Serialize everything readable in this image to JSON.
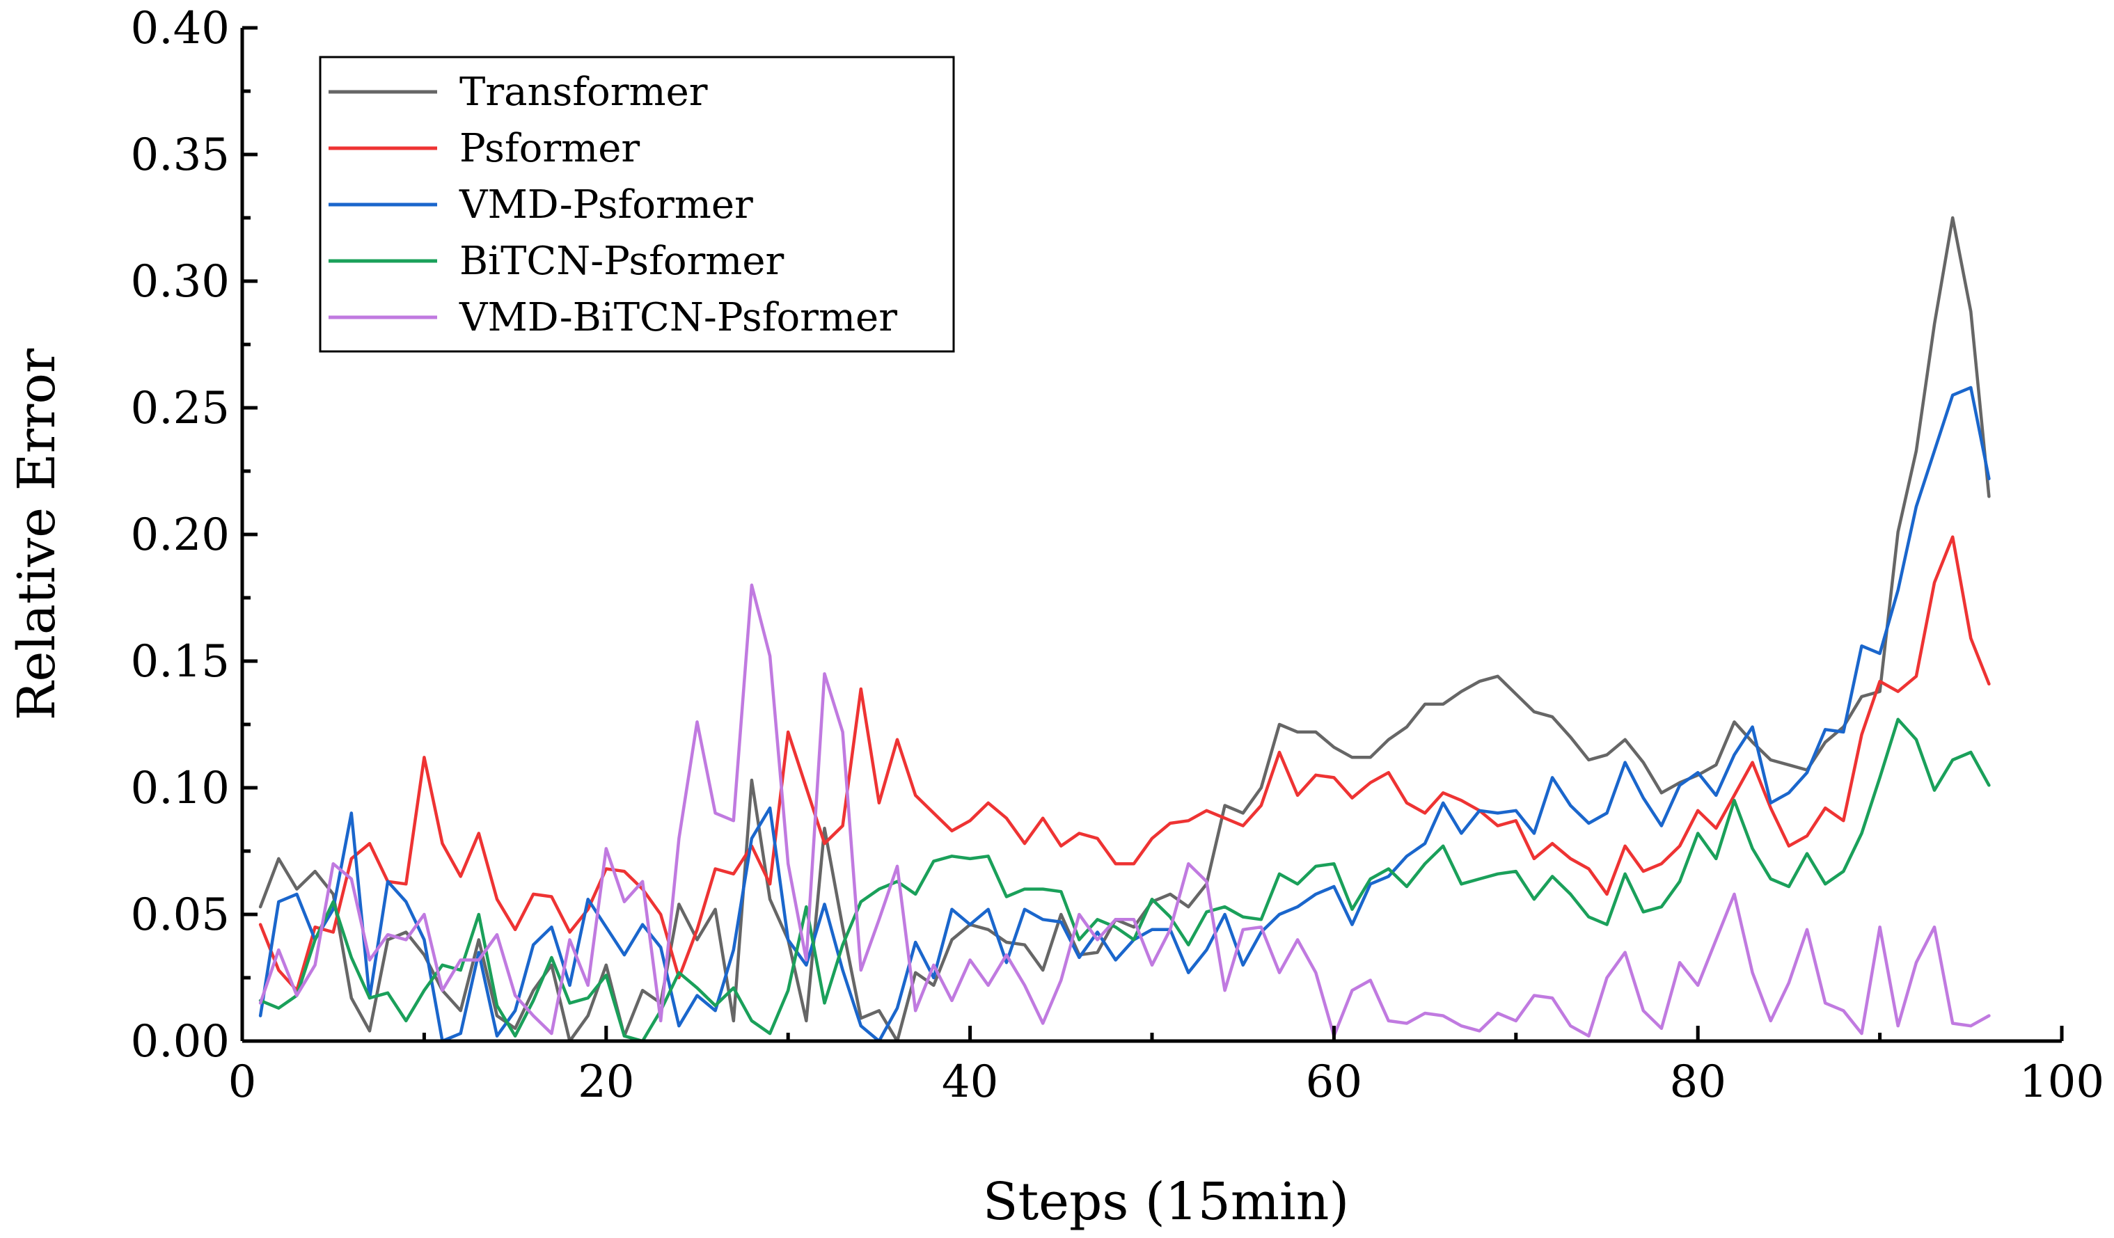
{
  "chart_data": {
    "type": "line",
    "xlabel": "Steps (15min)",
    "ylabel": "Relative Error",
    "xlim": [
      0,
      100
    ],
    "ylim": [
      0,
      0.4
    ],
    "x_ticks": [
      0,
      20,
      40,
      60,
      80,
      100
    ],
    "x_tick_labels": [
      "0",
      "20",
      "40",
      "60",
      "80",
      "100"
    ],
    "y_ticks": [
      0,
      0.05,
      0.1,
      0.15,
      0.2,
      0.25,
      0.3,
      0.35,
      0.4
    ],
    "y_tick_labels": [
      "0.00",
      "0.05",
      "0.10",
      "0.15",
      "0.20",
      "0.25",
      "0.30",
      "0.35",
      "0.40"
    ],
    "grid": false,
    "legend_position": "top-left",
    "x": [
      1,
      2,
      3,
      4,
      5,
      6,
      7,
      8,
      9,
      10,
      11,
      12,
      13,
      14,
      15,
      16,
      17,
      18,
      19,
      20,
      21,
      22,
      23,
      24,
      25,
      26,
      27,
      28,
      29,
      30,
      31,
      32,
      33,
      34,
      35,
      36,
      37,
      38,
      39,
      40,
      41,
      42,
      43,
      44,
      45,
      46,
      47,
      48,
      49,
      50,
      51,
      52,
      53,
      54,
      55,
      56,
      57,
      58,
      59,
      60,
      61,
      62,
      63,
      64,
      65,
      66,
      67,
      68,
      69,
      70,
      71,
      72,
      73,
      74,
      75,
      76,
      77,
      78,
      79,
      80,
      81,
      82,
      83,
      84,
      85,
      86,
      87,
      88,
      89,
      90,
      91,
      92,
      93,
      94,
      95,
      96
    ],
    "series": [
      {
        "name": "Transformer",
        "color": "#666666",
        "values": [
          0.053,
          0.072,
          0.06,
          0.067,
          0.058,
          0.017,
          0.004,
          0.04,
          0.043,
          0.034,
          0.02,
          0.012,
          0.04,
          0.01,
          0.005,
          0.02,
          0.03,
          0.0,
          0.01,
          0.03,
          0.002,
          0.02,
          0.015,
          0.054,
          0.04,
          0.052,
          0.008,
          0.103,
          0.056,
          0.04,
          0.008,
          0.084,
          0.045,
          0.009,
          0.012,
          0.0,
          0.027,
          0.022,
          0.04,
          0.046,
          0.044,
          0.039,
          0.038,
          0.028,
          0.05,
          0.034,
          0.035,
          0.048,
          0.045,
          0.055,
          0.058,
          0.053,
          0.062,
          0.093,
          0.09,
          0.1,
          0.125,
          0.122,
          0.122,
          0.116,
          0.112,
          0.112,
          0.119,
          0.124,
          0.133,
          0.133,
          0.138,
          0.142,
          0.144,
          0.137,
          0.13,
          0.128,
          0.12,
          0.111,
          0.113,
          0.119,
          0.11,
          0.098,
          0.102,
          0.105,
          0.109,
          0.126,
          0.118,
          0.111,
          0.109,
          0.107,
          0.118,
          0.124,
          0.136,
          0.138,
          0.201,
          0.233,
          0.283,
          0.325,
          0.288,
          0.215
        ]
      },
      {
        "name": "Psformer",
        "color": "#ee3333",
        "values": [
          0.046,
          0.028,
          0.02,
          0.045,
          0.043,
          0.072,
          0.078,
          0.063,
          0.062,
          0.112,
          0.078,
          0.065,
          0.082,
          0.056,
          0.044,
          0.058,
          0.057,
          0.043,
          0.052,
          0.068,
          0.067,
          0.06,
          0.05,
          0.025,
          0.044,
          0.068,
          0.066,
          0.077,
          0.062,
          0.122,
          0.1,
          0.078,
          0.085,
          0.139,
          0.094,
          0.119,
          0.097,
          0.09,
          0.083,
          0.087,
          0.094,
          0.088,
          0.078,
          0.088,
          0.077,
          0.082,
          0.08,
          0.07,
          0.07,
          0.08,
          0.086,
          0.087,
          0.091,
          0.088,
          0.085,
          0.093,
          0.114,
          0.097,
          0.105,
          0.104,
          0.096,
          0.102,
          0.106,
          0.094,
          0.09,
          0.098,
          0.095,
          0.091,
          0.085,
          0.087,
          0.072,
          0.078,
          0.072,
          0.068,
          0.058,
          0.077,
          0.067,
          0.07,
          0.077,
          0.091,
          0.084,
          0.097,
          0.11,
          0.092,
          0.077,
          0.081,
          0.092,
          0.087,
          0.121,
          0.142,
          0.138,
          0.144,
          0.181,
          0.199,
          0.159,
          0.141
        ]
      },
      {
        "name": "VMD-Psformer",
        "color": "#1a66cc",
        "values": [
          0.01,
          0.055,
          0.058,
          0.04,
          0.052,
          0.09,
          0.017,
          0.063,
          0.055,
          0.04,
          0.0,
          0.003,
          0.035,
          0.002,
          0.012,
          0.038,
          0.045,
          0.022,
          0.056,
          0.045,
          0.034,
          0.046,
          0.037,
          0.006,
          0.018,
          0.012,
          0.036,
          0.08,
          0.092,
          0.04,
          0.03,
          0.054,
          0.028,
          0.006,
          0.0,
          0.013,
          0.039,
          0.025,
          0.052,
          0.046,
          0.052,
          0.031,
          0.052,
          0.048,
          0.047,
          0.033,
          0.043,
          0.032,
          0.04,
          0.044,
          0.044,
          0.027,
          0.036,
          0.05,
          0.03,
          0.043,
          0.05,
          0.053,
          0.058,
          0.061,
          0.046,
          0.062,
          0.065,
          0.073,
          0.078,
          0.094,
          0.082,
          0.091,
          0.09,
          0.091,
          0.082,
          0.104,
          0.093,
          0.086,
          0.09,
          0.11,
          0.096,
          0.085,
          0.101,
          0.106,
          0.097,
          0.113,
          0.124,
          0.094,
          0.098,
          0.106,
          0.123,
          0.122,
          0.156,
          0.153,
          0.178,
          0.211,
          0.233,
          0.255,
          0.258,
          0.222
        ]
      },
      {
        "name": "BiTCN-Psformer",
        "color": "#1aa05a",
        "values": [
          0.016,
          0.013,
          0.018,
          0.04,
          0.055,
          0.033,
          0.017,
          0.019,
          0.008,
          0.02,
          0.03,
          0.028,
          0.05,
          0.014,
          0.002,
          0.016,
          0.033,
          0.015,
          0.017,
          0.026,
          0.002,
          0.0,
          0.012,
          0.027,
          0.021,
          0.014,
          0.021,
          0.008,
          0.003,
          0.02,
          0.053,
          0.015,
          0.038,
          0.055,
          0.06,
          0.063,
          0.058,
          0.071,
          0.073,
          0.072,
          0.073,
          0.057,
          0.06,
          0.06,
          0.059,
          0.04,
          0.048,
          0.045,
          0.04,
          0.056,
          0.049,
          0.038,
          0.051,
          0.053,
          0.049,
          0.048,
          0.066,
          0.062,
          0.069,
          0.07,
          0.052,
          0.064,
          0.068,
          0.061,
          0.07,
          0.077,
          0.062,
          0.064,
          0.066,
          0.067,
          0.056,
          0.065,
          0.058,
          0.049,
          0.046,
          0.066,
          0.051,
          0.053,
          0.063,
          0.082,
          0.072,
          0.095,
          0.076,
          0.064,
          0.061,
          0.074,
          0.062,
          0.067,
          0.082,
          0.104,
          0.127,
          0.119,
          0.099,
          0.111,
          0.114,
          0.101
        ]
      },
      {
        "name": "VMD-BiTCN-Psformer",
        "color": "#c07ae0",
        "values": [
          0.015,
          0.036,
          0.018,
          0.03,
          0.07,
          0.064,
          0.032,
          0.042,
          0.04,
          0.05,
          0.02,
          0.032,
          0.032,
          0.042,
          0.018,
          0.01,
          0.003,
          0.04,
          0.022,
          0.076,
          0.055,
          0.063,
          0.008,
          0.08,
          0.126,
          0.09,
          0.087,
          0.18,
          0.152,
          0.07,
          0.032,
          0.145,
          0.122,
          0.028,
          0.048,
          0.069,
          0.012,
          0.03,
          0.016,
          0.032,
          0.022,
          0.034,
          0.022,
          0.007,
          0.024,
          0.05,
          0.04,
          0.048,
          0.048,
          0.03,
          0.044,
          0.07,
          0.063,
          0.02,
          0.044,
          0.045,
          0.027,
          0.04,
          0.027,
          0.002,
          0.02,
          0.024,
          0.008,
          0.007,
          0.011,
          0.01,
          0.006,
          0.004,
          0.011,
          0.008,
          0.018,
          0.017,
          0.006,
          0.002,
          0.025,
          0.035,
          0.012,
          0.005,
          0.031,
          0.022,
          0.04,
          0.058,
          0.027,
          0.008,
          0.023,
          0.044,
          0.015,
          0.012,
          0.003,
          0.045,
          0.006,
          0.031,
          0.045,
          0.007,
          0.006,
          0.01
        ]
      }
    ]
  }
}
